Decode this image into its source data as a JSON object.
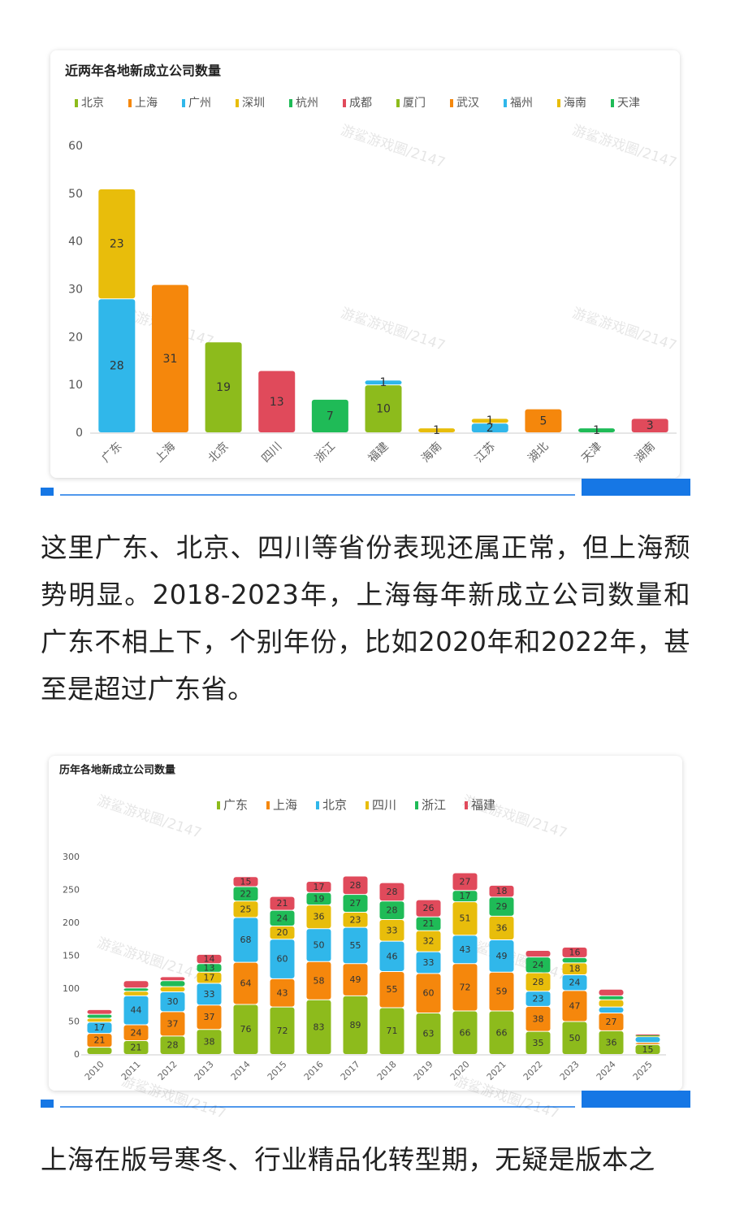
{
  "chart_data": [
    {
      "type": "bar",
      "stacked": true,
      "title": "近两年各地新成立公司数量",
      "categories": [
        "广东",
        "上海",
        "北京",
        "四川",
        "浙江",
        "福建",
        "海南",
        "江苏",
        "湖北",
        "天津",
        "湖南"
      ],
      "series": [
        {
          "name": "北京",
          "color": "#8dbb1c",
          "values": [
            null,
            null,
            19,
            null,
            null,
            null,
            null,
            null,
            null,
            null,
            null
          ]
        },
        {
          "name": "上海",
          "color": "#f5870c",
          "values": [
            null,
            31,
            null,
            null,
            null,
            null,
            null,
            null,
            null,
            null,
            null
          ]
        },
        {
          "name": "广州",
          "color": "#30b7ea",
          "values": [
            28,
            null,
            null,
            null,
            null,
            null,
            null,
            null,
            null,
            null,
            null
          ]
        },
        {
          "name": "深圳",
          "color": "#e8bd0b",
          "values": [
            23,
            null,
            null,
            null,
            null,
            null,
            null,
            null,
            null,
            null,
            null
          ]
        },
        {
          "name": "杭州",
          "color": "#1fbb57",
          "values": [
            null,
            null,
            null,
            null,
            7,
            null,
            null,
            null,
            null,
            null,
            null
          ]
        },
        {
          "name": "成都",
          "color": "#e04a5b",
          "values": [
            null,
            null,
            null,
            13,
            null,
            null,
            null,
            null,
            null,
            null,
            null
          ]
        },
        {
          "name": "厦门",
          "color": "#8dbb1c",
          "values": [
            null,
            null,
            null,
            null,
            null,
            10,
            null,
            null,
            null,
            null,
            null
          ]
        },
        {
          "name": "武汉",
          "color": "#f5870c",
          "values": [
            null,
            null,
            null,
            null,
            null,
            null,
            null,
            null,
            5,
            null,
            null
          ]
        },
        {
          "name": "福州",
          "color": "#30b7ea",
          "values": [
            null,
            null,
            null,
            null,
            null,
            1,
            null,
            null,
            null,
            null,
            null
          ]
        },
        {
          "name": "海南",
          "color": "#e8bd0b",
          "values": [
            null,
            null,
            null,
            null,
            null,
            null,
            1,
            null,
            null,
            null,
            null
          ]
        },
        {
          "name": "天津",
          "color": "#1fbb57",
          "values": [
            null,
            null,
            null,
            null,
            null,
            null,
            null,
            null,
            null,
            1,
            null
          ]
        },
        {
          "color": "#e04a5b",
          "values": [
            null,
            null,
            null,
            null,
            null,
            null,
            null,
            null,
            null,
            null,
            3
          ]
        },
        {
          "color": "#30b7ea",
          "values": [
            null,
            null,
            null,
            null,
            null,
            null,
            null,
            2,
            null,
            null,
            null
          ]
        },
        {
          "color": "#e8bd0b",
          "values": [
            null,
            null,
            null,
            null,
            null,
            null,
            null,
            1,
            null,
            null,
            null
          ]
        }
      ],
      "ylim": [
        0,
        60
      ],
      "yticks": [
        0,
        10,
        20,
        30,
        40,
        50,
        60
      ],
      "grid": false
    },
    {
      "type": "bar",
      "stacked": true,
      "title": "历年各地新成立公司数量",
      "categories": [
        "2010",
        "2011",
        "2012",
        "2013",
        "2014",
        "2015",
        "2016",
        "2017",
        "2018",
        "2019",
        "2020",
        "2021",
        "2022",
        "2023",
        "2024",
        "2025"
      ],
      "series": [
        {
          "name": "广东",
          "color": "#8dbb1c",
          "values": [
            11,
            21,
            28,
            38,
            76,
            72,
            83,
            89,
            71,
            63,
            66,
            66,
            35,
            50,
            36,
            15
          ]
        },
        {
          "name": "上海",
          "color": "#f5870c",
          "values": [
            21,
            24,
            37,
            37,
            64,
            43,
            58,
            49,
            55,
            60,
            72,
            59,
            38,
            47,
            27,
            3
          ]
        },
        {
          "name": "北京",
          "color": "#30b7ea",
          "values": [
            17,
            44,
            30,
            33,
            68,
            60,
            50,
            55,
            46,
            33,
            43,
            49,
            23,
            24,
            9,
            9
          ]
        },
        {
          "name": "四川",
          "color": "#e8bd0b",
          "values": [
            6,
            7,
            8,
            17,
            25,
            20,
            36,
            23,
            33,
            32,
            51,
            36,
            28,
            18,
            11,
            2
          ]
        },
        {
          "name": "浙江",
          "color": "#1fbb57",
          "values": [
            6,
            5,
            9,
            13,
            22,
            24,
            19,
            27,
            28,
            21,
            17,
            29,
            24,
            8,
            6,
            1
          ]
        },
        {
          "name": "福建",
          "color": "#e04a5b",
          "values": [
            7,
            11,
            6,
            14,
            15,
            21,
            17,
            28,
            28,
            26,
            27,
            18,
            10,
            16,
            10,
            1
          ]
        }
      ],
      "ylim": [
        0,
        300
      ],
      "yticks": [
        0,
        50,
        100,
        150,
        200,
        250,
        300
      ],
      "grid": false
    }
  ],
  "watermark": "游鲨游戏圈/2147",
  "paragraphs": [
    "这里广东、北京、四川等省份表现还属正常，但上海颓势明显。2018-2023年，上海每年新成立公司数量和广东不相上下，个别年份，比如2020年和2022年，甚至是超过广东省。",
    "上海在版号寒冬、行业精品化转型期，无疑是版本之"
  ]
}
